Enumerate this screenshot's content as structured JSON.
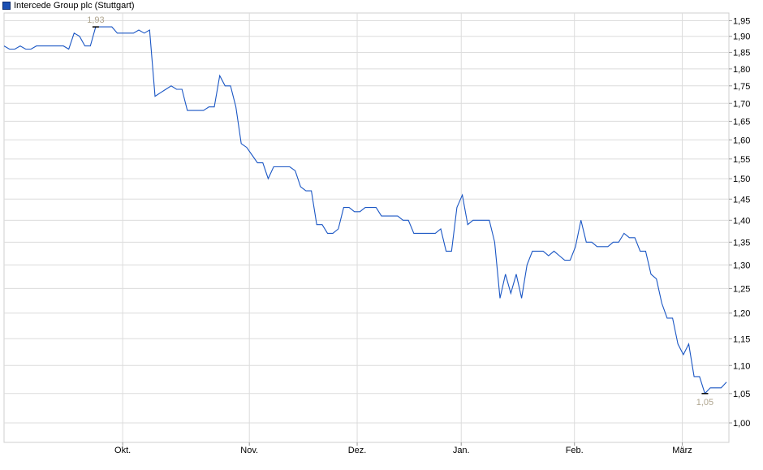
{
  "chart_data": {
    "type": "line",
    "title": "",
    "legend": {
      "label": "Intercede Group plc (Stuttgart)",
      "position": "top-left"
    },
    "series": [
      {
        "name": "Intercede Group plc (Stuttgart)",
        "color": "#1a56c4",
        "values": [
          1.87,
          1.86,
          1.86,
          1.87,
          1.86,
          1.86,
          1.87,
          1.87,
          1.87,
          1.87,
          1.87,
          1.87,
          1.86,
          1.91,
          1.9,
          1.87,
          1.87,
          1.93,
          1.93,
          1.93,
          1.93,
          1.91,
          1.91,
          1.91,
          1.91,
          1.92,
          1.91,
          1.92,
          1.72,
          1.73,
          1.74,
          1.75,
          1.74,
          1.74,
          1.68,
          1.68,
          1.68,
          1.68,
          1.69,
          1.69,
          1.78,
          1.75,
          1.75,
          1.69,
          1.59,
          1.58,
          1.56,
          1.54,
          1.54,
          1.5,
          1.53,
          1.53,
          1.53,
          1.53,
          1.52,
          1.48,
          1.47,
          1.47,
          1.39,
          1.39,
          1.37,
          1.37,
          1.38,
          1.43,
          1.43,
          1.42,
          1.42,
          1.43,
          1.43,
          1.43,
          1.41,
          1.41,
          1.41,
          1.41,
          1.4,
          1.4,
          1.37,
          1.37,
          1.37,
          1.37,
          1.37,
          1.38,
          1.33,
          1.33,
          1.43,
          1.46,
          1.39,
          1.4,
          1.4,
          1.4,
          1.4,
          1.35,
          1.23,
          1.28,
          1.24,
          1.28,
          1.23,
          1.3,
          1.33,
          1.33,
          1.33,
          1.32,
          1.33,
          1.32,
          1.31,
          1.31,
          1.34,
          1.4,
          1.35,
          1.35,
          1.34,
          1.34,
          1.34,
          1.35,
          1.35,
          1.37,
          1.36,
          1.36,
          1.33,
          1.33,
          1.28,
          1.27,
          1.22,
          1.19,
          1.19,
          1.14,
          1.12,
          1.14,
          1.08,
          1.08,
          1.05,
          1.06,
          1.06,
          1.06,
          1.07
        ]
      }
    ],
    "x_tick_labels": [
      "Okt.",
      "Nov.",
      "Dez.",
      "Jan.",
      "Feb.",
      "März"
    ],
    "y_scale": "log",
    "ylim": [
      0.96,
      1.98
    ],
    "y_tick_labels": [
      "1,00",
      "1,05",
      "1,10",
      "1,15",
      "1,20",
      "1,25",
      "1,30",
      "1,35",
      "1,40",
      "1,45",
      "1,50",
      "1,55",
      "1,60",
      "1,65",
      "1,70",
      "1,75",
      "1,80",
      "1,85",
      "1,90",
      "1,95"
    ],
    "y_axis_position": "right",
    "grid": true,
    "annotations": {
      "max_label": "1,93",
      "min_label": "1,05"
    }
  }
}
